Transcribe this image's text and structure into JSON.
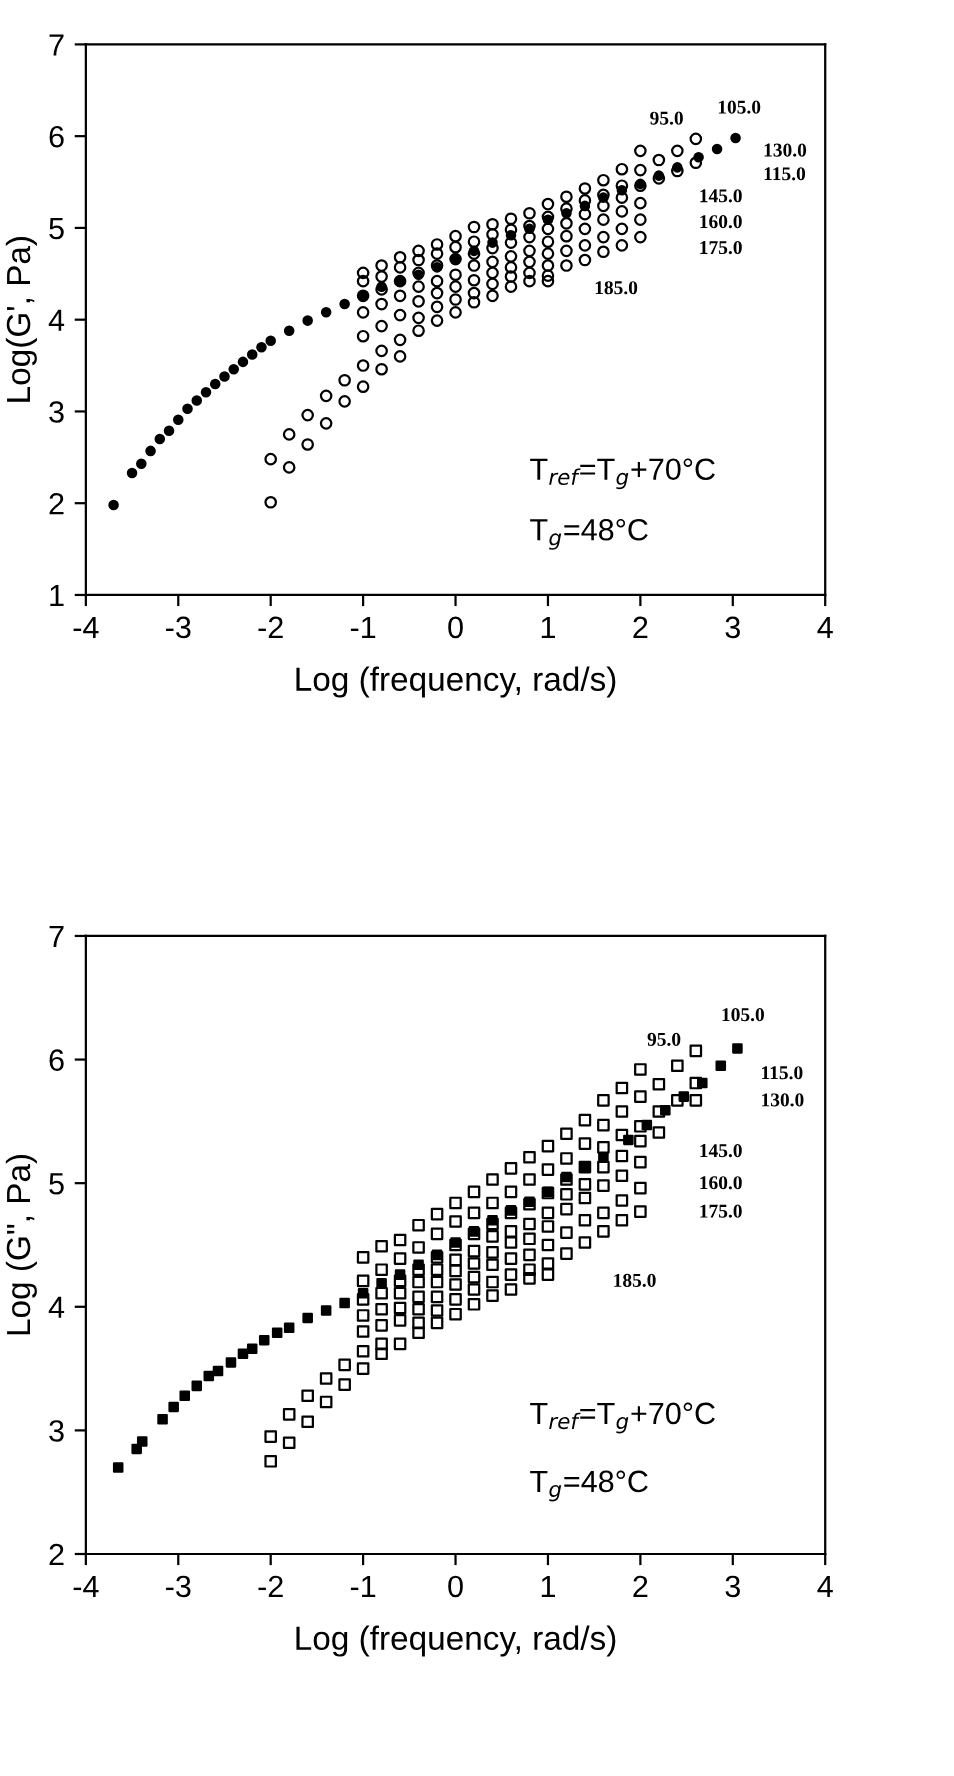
{
  "chart_data": [
    {
      "type": "scatter",
      "ylabel": "Log(G', Pa)",
      "xlabel": "Log (frequency, rad/s)",
      "xlim": [
        -4,
        4
      ],
      "ylim": [
        1,
        7
      ],
      "xticks": [
        -4,
        -3,
        -2,
        -1,
        0,
        1,
        2,
        3,
        4
      ],
      "yticks": [
        1,
        2,
        3,
        4,
        5,
        6,
        7
      ],
      "grid": false,
      "legend": false,
      "marker": "circle",
      "series": [
        {
          "color": "#000000",
          "x": [
            -2.0,
            -2.0,
            -1.8,
            -1.8,
            -1.6,
            -1.6,
            -1.4,
            -1.4,
            -1.2,
            -1.2,
            -1.0,
            -1.0,
            -1.0,
            -1.0,
            -1.0,
            -1.0,
            -1.0,
            -0.8,
            -0.8,
            -0.8,
            -0.8,
            -0.8,
            -0.8,
            -0.8,
            -0.6,
            -0.6,
            -0.6,
            -0.6,
            -0.6,
            -0.6,
            -0.6,
            -0.4,
            -0.4,
            -0.4,
            -0.4,
            -0.4,
            -0.4,
            -0.4,
            -0.2,
            -0.2,
            -0.2,
            -0.2,
            -0.2,
            -0.2,
            -0.2,
            0.0,
            0.0,
            0.0,
            0.0,
            0.0,
            0.0,
            0.0,
            0.2,
            0.2,
            0.2,
            0.2,
            0.2,
            0.2,
            0.2,
            0.4,
            0.4,
            0.4,
            0.4,
            0.4,
            0.4,
            0.4,
            0.6,
            0.6,
            0.6,
            0.6,
            0.6,
            0.6,
            0.6,
            0.8,
            0.8,
            0.8,
            0.8,
            0.8,
            0.8,
            0.8,
            1.0,
            1.0,
            1.0,
            1.0,
            1.0,
            1.0,
            1.0,
            1.0,
            1.2,
            1.2,
            1.2,
            1.2,
            1.2,
            1.2,
            1.4,
            1.4,
            1.4,
            1.4,
            1.4,
            1.4,
            1.6,
            1.6,
            1.6,
            1.6,
            1.6,
            1.6,
            1.8,
            1.8,
            1.8,
            1.8,
            1.8,
            1.8,
            2.0,
            2.0,
            2.0,
            2.0,
            2.0,
            2.0,
            2.2,
            2.2,
            2.4,
            2.4,
            2.6,
            2.6
          ],
          "values": [
            2.48,
            2.01,
            2.75,
            2.39,
            2.96,
            2.64,
            3.17,
            2.87,
            3.34,
            3.11,
            4.51,
            4.42,
            4.26,
            4.08,
            3.82,
            3.5,
            3.27,
            4.59,
            4.47,
            4.33,
            4.17,
            3.93,
            3.66,
            3.46,
            4.68,
            4.57,
            4.42,
            4.26,
            4.05,
            3.78,
            3.6,
            4.75,
            4.65,
            4.51,
            4.36,
            4.2,
            4.02,
            3.88,
            4.82,
            4.72,
            4.59,
            4.42,
            4.29,
            4.14,
            3.99,
            4.91,
            4.79,
            4.66,
            4.49,
            4.36,
            4.22,
            4.08,
            5.01,
            4.85,
            4.72,
            4.59,
            4.43,
            4.29,
            4.19,
            5.04,
            4.93,
            4.78,
            4.63,
            4.51,
            4.39,
            4.26,
            5.1,
            4.98,
            4.84,
            4.69,
            4.57,
            4.47,
            4.36,
            5.16,
            5.02,
            4.9,
            4.75,
            4.63,
            4.51,
            4.42,
            5.26,
            5.12,
            4.99,
            4.85,
            4.72,
            4.59,
            4.48,
            4.42,
            5.34,
            5.21,
            5.05,
            4.91,
            4.75,
            4.59,
            5.43,
            5.3,
            5.15,
            4.99,
            4.81,
            4.65,
            5.52,
            5.36,
            5.24,
            5.09,
            4.9,
            4.74,
            5.64,
            5.46,
            5.33,
            5.18,
            4.99,
            4.81,
            5.84,
            5.63,
            5.46,
            5.27,
            5.09,
            4.9,
            5.74,
            5.54,
            5.84,
            5.62,
            5.97,
            5.71
          ]
        },
        {
          "color": "#000000",
          "x": [
            -3.7,
            -3.5,
            -3.4,
            -3.3,
            -3.2,
            -3.1,
            -3.0,
            -2.9,
            -2.8,
            -2.7,
            -2.6,
            -2.5,
            -2.4,
            -2.3,
            -2.2,
            -2.1,
            -2.0,
            -1.8,
            -1.6,
            -1.4,
            -1.2,
            -1.0,
            -0.8,
            -0.6,
            -0.4,
            -0.2,
            0.0,
            0.2,
            0.4,
            0.6,
            0.8,
            1.0,
            1.2,
            1.4,
            1.6,
            1.8,
            2.0,
            2.2,
            2.4,
            2.63,
            2.83,
            3.03
          ],
          "values": [
            1.98,
            2.33,
            2.43,
            2.57,
            2.7,
            2.79,
            2.91,
            3.03,
            3.12,
            3.21,
            3.3,
            3.38,
            3.46,
            3.54,
            3.62,
            3.7,
            3.77,
            3.88,
            3.99,
            4.08,
            4.17,
            4.26,
            4.36,
            4.42,
            4.49,
            4.57,
            4.66,
            4.75,
            4.84,
            4.92,
            4.99,
            5.09,
            5.16,
            5.24,
            5.33,
            5.41,
            5.48,
            5.57,
            5.66,
            5.77,
            5.86,
            5.98
          ]
        }
      ],
      "annotations": [
        "95.0",
        "105.0",
        "130.0",
        "115.0",
        "145.0",
        "160.0",
        "175.0",
        "185.0",
        "T$_{ref}$=T$_{g}$+70°C",
        "T$_{g}$=48°C"
      ]
    },
    {
      "type": "scatter",
      "ylabel": "Log (G\", Pa)",
      "xlabel": "Log (frequency, rad/s)",
      "xlim": [
        -4,
        4
      ],
      "ylim": [
        2,
        7
      ],
      "xticks": [
        -4,
        -3,
        -2,
        -1,
        0,
        1,
        2,
        3,
        4
      ],
      "yticks": [
        2,
        3,
        4,
        5,
        6,
        7
      ],
      "grid": false,
      "legend": false,
      "marker": "square",
      "series": [
        {
          "color": "#000000",
          "x": [
            -2.0,
            -2.0,
            -1.8,
            -1.8,
            -1.6,
            -1.6,
            -1.4,
            -1.4,
            -1.2,
            -1.2,
            -1.0,
            -1.0,
            -1.0,
            -1.0,
            -1.0,
            -1.0,
            -1.0,
            -0.8,
            -0.8,
            -0.8,
            -0.8,
            -0.8,
            -0.8,
            -0.8,
            -0.6,
            -0.6,
            -0.6,
            -0.6,
            -0.6,
            -0.6,
            -0.6,
            -0.4,
            -0.4,
            -0.4,
            -0.4,
            -0.4,
            -0.4,
            -0.4,
            -0.4,
            -0.2,
            -0.2,
            -0.2,
            -0.2,
            -0.2,
            -0.2,
            -0.2,
            -0.2,
            0.0,
            0.0,
            0.0,
            0.0,
            0.0,
            0.0,
            0.0,
            0.0,
            0.2,
            0.2,
            0.2,
            0.2,
            0.2,
            0.2,
            0.2,
            0.2,
            0.4,
            0.4,
            0.4,
            0.4,
            0.4,
            0.4,
            0.4,
            0.4,
            0.6,
            0.6,
            0.6,
            0.6,
            0.6,
            0.6,
            0.6,
            0.6,
            0.8,
            0.8,
            0.8,
            0.8,
            0.8,
            0.8,
            0.8,
            0.8,
            1.0,
            1.0,
            1.0,
            1.0,
            1.0,
            1.0,
            1.0,
            1.0,
            1.2,
            1.2,
            1.2,
            1.2,
            1.2,
            1.2,
            1.2,
            1.4,
            1.4,
            1.4,
            1.4,
            1.4,
            1.4,
            1.4,
            1.6,
            1.6,
            1.6,
            1.6,
            1.6,
            1.6,
            1.6,
            1.8,
            1.8,
            1.8,
            1.8,
            1.8,
            1.8,
            1.8,
            2.0,
            2.0,
            2.0,
            2.0,
            2.0,
            2.0,
            2.0,
            2.2,
            2.2,
            2.2,
            2.4,
            2.4,
            2.6,
            2.6,
            2.6
          ],
          "values": [
            2.95,
            2.75,
            3.13,
            2.9,
            3.28,
            3.07,
            3.42,
            3.23,
            3.53,
            3.37,
            4.4,
            4.21,
            4.06,
            3.93,
            3.8,
            3.64,
            3.5,
            4.49,
            4.3,
            4.11,
            3.98,
            3.85,
            3.7,
            3.62,
            4.54,
            4.39,
            4.21,
            4.11,
            3.99,
            3.89,
            3.7,
            4.66,
            4.48,
            4.3,
            4.2,
            4.08,
            3.98,
            3.87,
            3.79,
            4.75,
            4.59,
            4.4,
            4.3,
            4.2,
            4.08,
            3.97,
            3.87,
            4.84,
            4.69,
            4.5,
            4.38,
            4.29,
            4.18,
            4.06,
            3.94,
            4.93,
            4.76,
            4.59,
            4.45,
            4.35,
            4.24,
            4.14,
            4.02,
            5.03,
            4.84,
            4.67,
            4.57,
            4.44,
            4.34,
            4.2,
            4.09,
            5.12,
            4.93,
            4.76,
            4.61,
            4.52,
            4.39,
            4.26,
            4.14,
            5.21,
            5.03,
            4.83,
            4.67,
            4.55,
            4.42,
            4.3,
            4.23,
            5.3,
            5.11,
            4.92,
            4.76,
            4.65,
            4.5,
            4.35,
            4.26,
            5.4,
            5.2,
            5.03,
            4.91,
            4.79,
            4.6,
            4.43,
            5.51,
            5.32,
            5.13,
            4.99,
            4.88,
            4.7,
            4.52,
            5.67,
            5.47,
            5.29,
            5.13,
            4.98,
            4.76,
            4.61,
            5.77,
            5.58,
            5.39,
            5.22,
            5.06,
            4.86,
            4.7,
            5.92,
            5.7,
            5.46,
            5.34,
            5.17,
            4.96,
            4.77,
            5.8,
            5.58,
            5.41,
            5.95,
            5.67,
            6.07,
            5.81,
            5.67
          ]
        },
        {
          "color": "#000000",
          "x": [
            -3.65,
            -3.45,
            -3.39,
            -3.17,
            -3.05,
            -2.93,
            -2.8,
            -2.67,
            -2.57,
            -2.43,
            -2.3,
            -2.2,
            -2.07,
            -1.93,
            -1.8,
            -1.6,
            -1.4,
            -1.2,
            -1.0,
            -0.8,
            -0.6,
            -0.4,
            -0.2,
            0.0,
            0.2,
            0.4,
            0.6,
            0.8,
            1.0,
            1.2,
            1.4,
            1.6,
            1.87,
            2.07,
            2.27,
            2.47,
            2.67,
            2.87,
            3.05
          ],
          "values": [
            2.7,
            2.85,
            2.91,
            3.09,
            3.19,
            3.28,
            3.36,
            3.44,
            3.48,
            3.55,
            3.62,
            3.66,
            3.73,
            3.79,
            3.83,
            3.91,
            3.97,
            4.03,
            4.11,
            4.19,
            4.26,
            4.34,
            4.42,
            4.52,
            4.61,
            4.7,
            4.78,
            4.85,
            4.93,
            5.05,
            5.13,
            5.21,
            5.35,
            5.47,
            5.59,
            5.7,
            5.81,
            5.95,
            6.09
          ]
        }
      ],
      "annotations": [
        "105.0",
        "95.0",
        "115.0",
        "130.0",
        "145.0",
        "160.0",
        "175.0",
        "185.0",
        "T$_{ref}$=T$_{g}$+70°C",
        "T$_{g}$=48°C"
      ]
    }
  ]
}
